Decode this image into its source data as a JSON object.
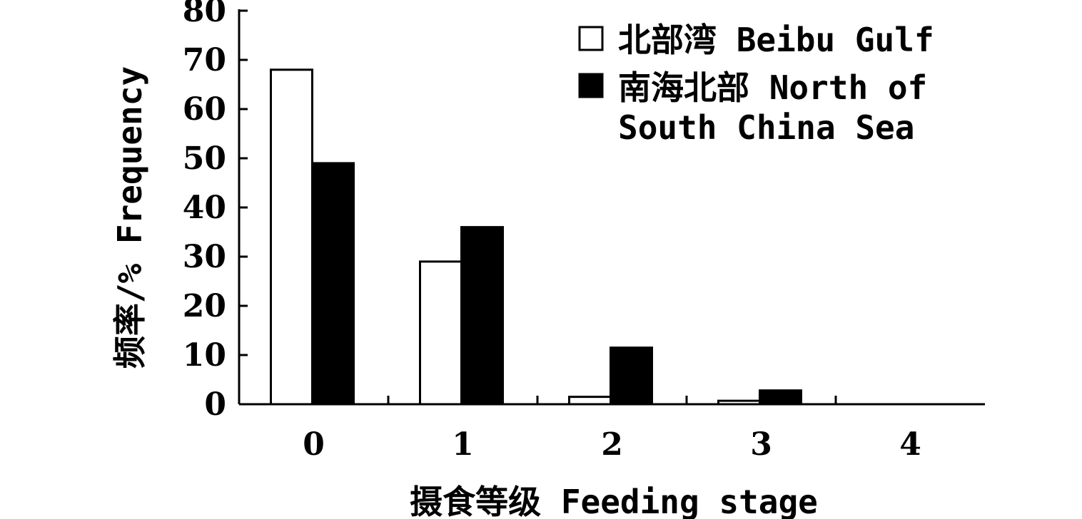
{
  "chart_data": {
    "type": "bar",
    "categories": [
      "0",
      "1",
      "2",
      "3",
      "4"
    ],
    "series": [
      {
        "name": "北部湾 Beibu Gulf",
        "values": [
          68,
          29,
          1.5,
          0.7,
          0
        ],
        "color": "#ffffff"
      },
      {
        "name": "南海北部 North of South China Sea",
        "values": [
          49,
          36,
          11.5,
          2.8,
          0
        ],
        "color": "#000000"
      }
    ],
    "legend_lines": [
      [
        "北部湾 Beibu Gulf"
      ],
      [
        "南海北部 North of",
        "South China Sea"
      ]
    ],
    "xlabel": "摄食等级 Feeding stage",
    "ylabel": "频率/% Frequency",
    "ylim": [
      0,
      80
    ],
    "yticks": [
      0,
      10,
      20,
      30,
      40,
      50,
      60,
      70,
      80
    ],
    "grid": false,
    "legend_position": "top-right"
  }
}
